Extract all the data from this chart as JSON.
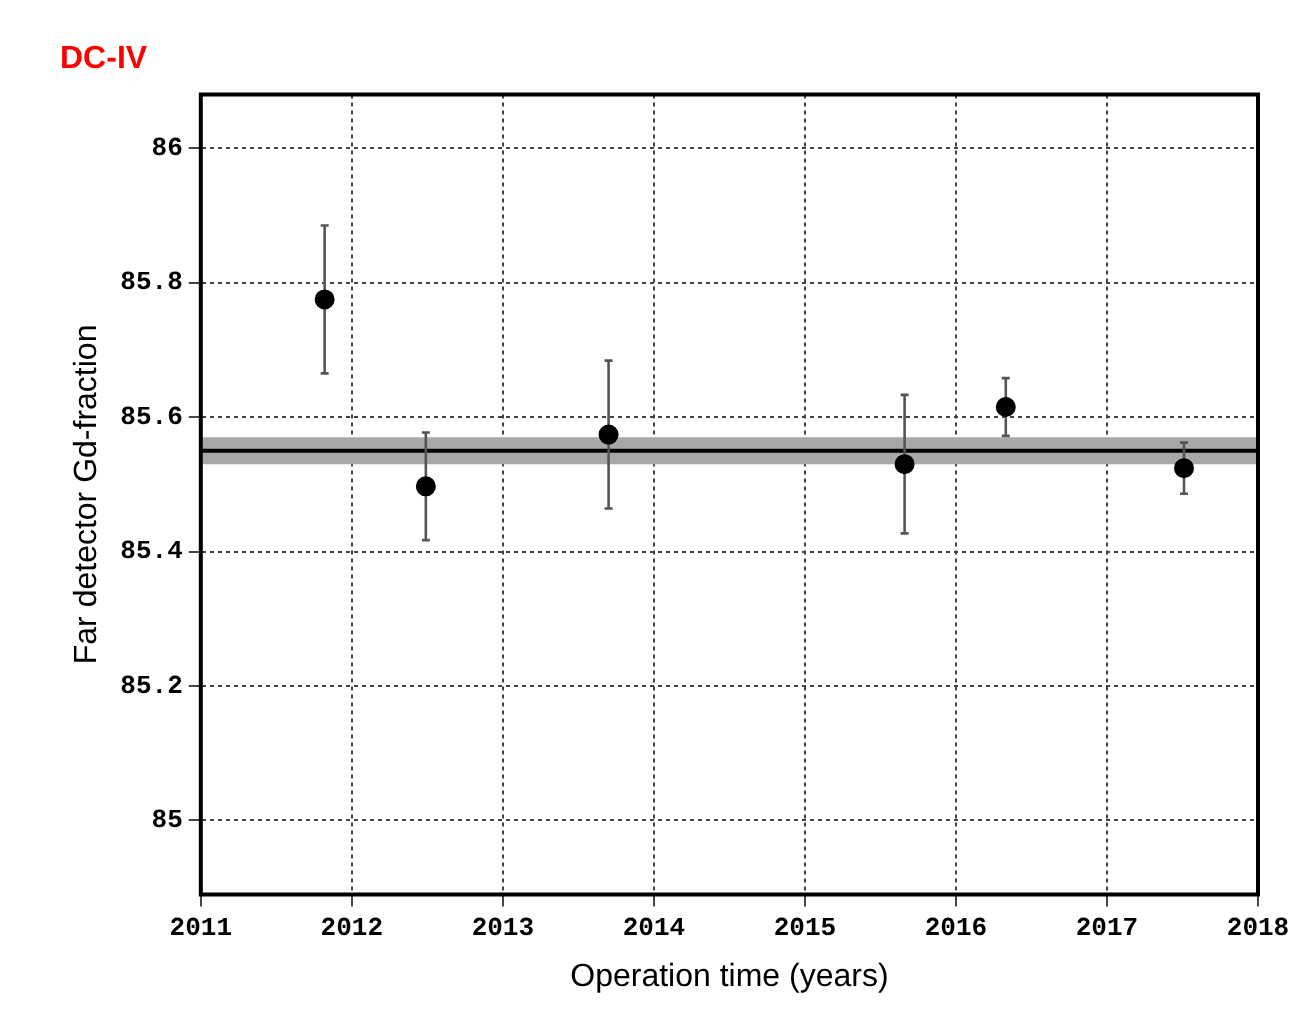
{
  "chart_data": {
    "type": "scatter",
    "title": "DC-IV",
    "xlabel": "Operation time (years)",
    "ylabel": "Far detector Gd-fraction",
    "x": [
      2011.82,
      2012.49,
      2013.7,
      2015.66,
      2016.33,
      2017.51
    ],
    "series": [
      {
        "color": "#000000",
        "values": [
          85.775,
          85.497,
          85.574,
          85.53,
          85.615,
          85.524
        ],
        "errors": [
          0.11,
          0.08,
          0.11,
          0.103,
          0.043,
          0.038
        ]
      }
    ],
    "xlim": [
      2011,
      2018
    ],
    "xticks": [
      2011,
      2012,
      2013,
      2014,
      2015,
      2016,
      2017,
      2018
    ],
    "ylim": [
      84.89,
      86.08
    ],
    "yticks": [
      85,
      85.2,
      85.4,
      85.6,
      85.8,
      86
    ],
    "ref_lines": [
      {
        "axis": "y",
        "value": 85.55,
        "color": "#000000"
      }
    ],
    "bands": [
      {
        "axis": "y",
        "from": 85.53,
        "to": 85.57,
        "color": "#a8a8a8"
      }
    ],
    "grid": true,
    "legend": false,
    "marker": "circle"
  }
}
